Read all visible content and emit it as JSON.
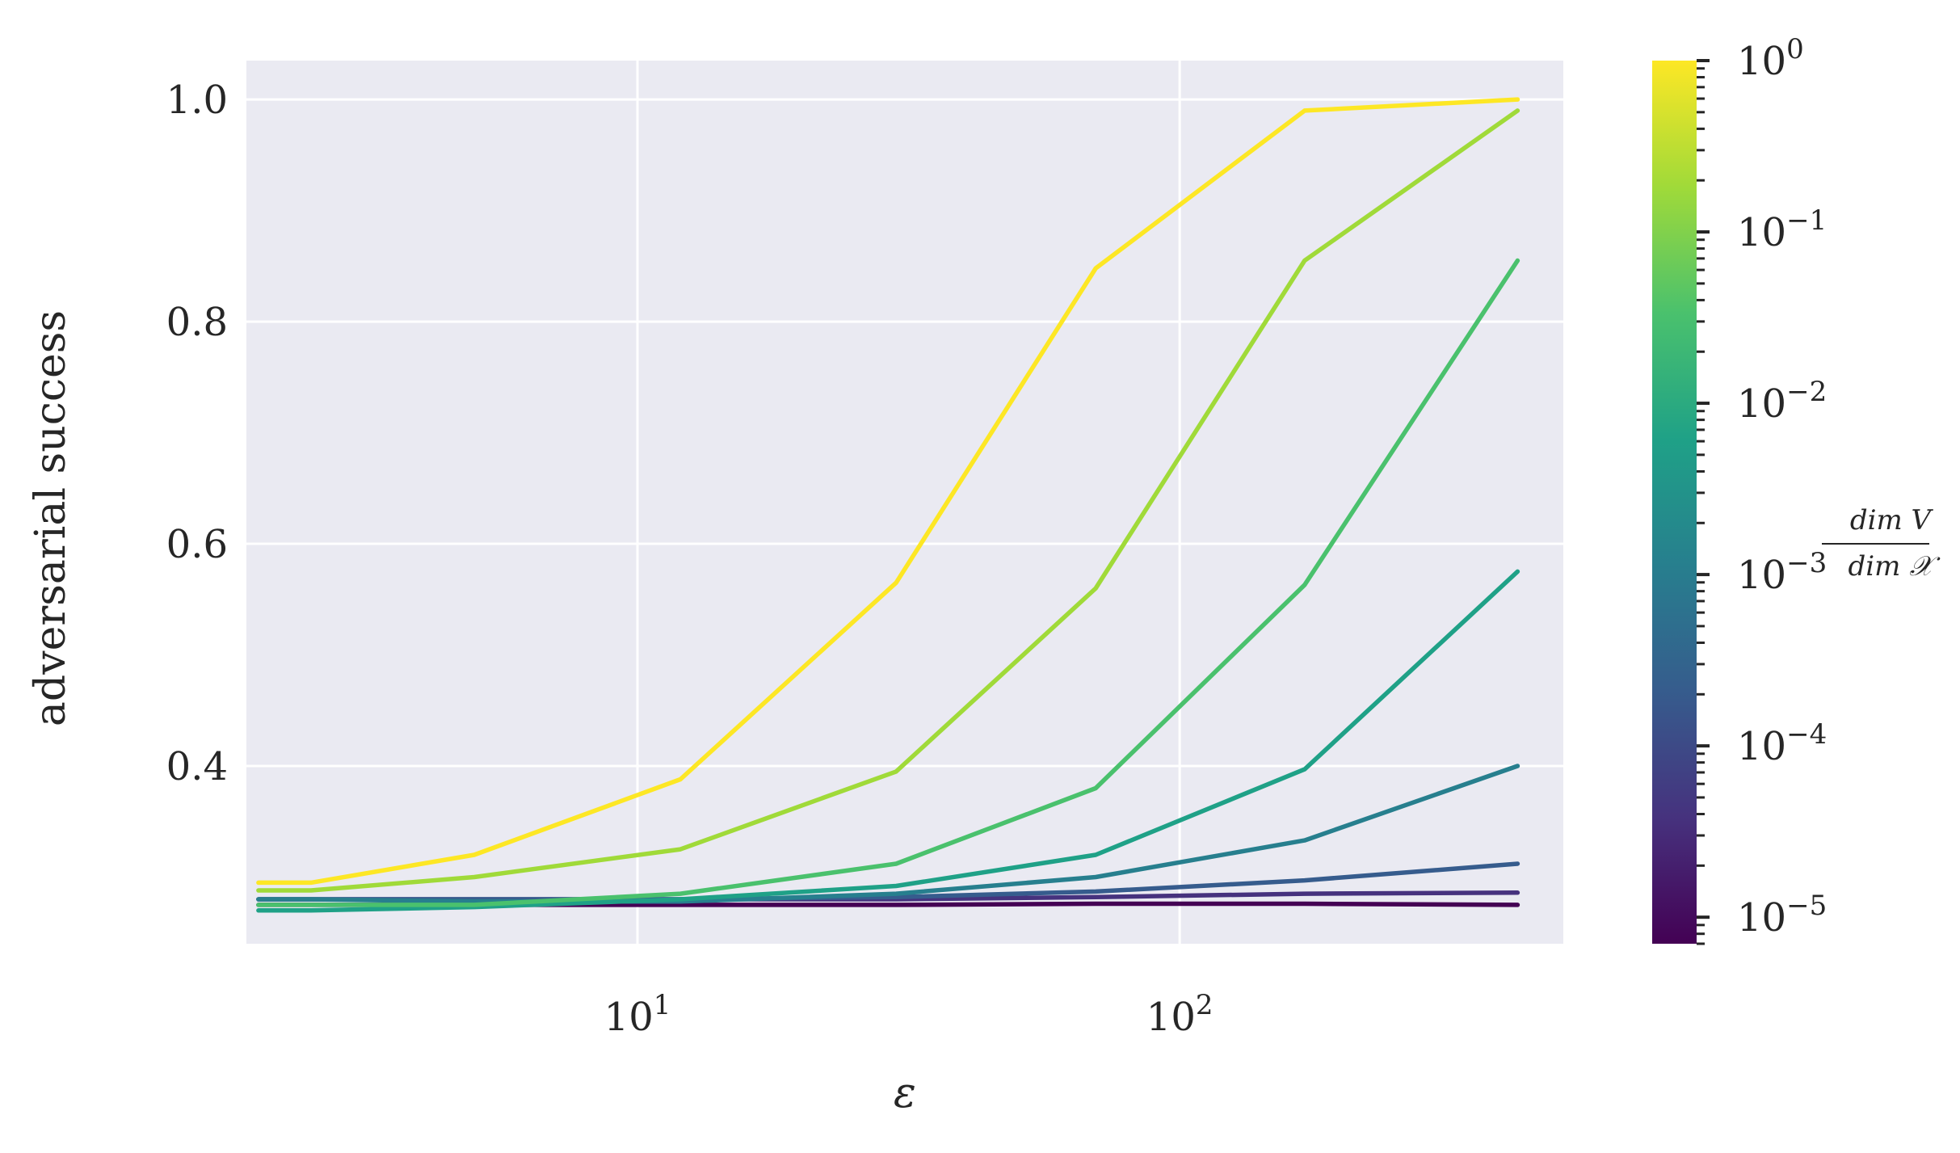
{
  "chart_data": {
    "type": "line",
    "xlabel": "ε",
    "ylabel": "adversarial success",
    "xscale": "log",
    "xlim": [
      1.9,
      510
    ],
    "ylim": [
      0.24,
      1.035
    ],
    "grid": true,
    "x_ticks": [
      {
        "value": 10,
        "base": "10",
        "exp": "1"
      },
      {
        "value": 100,
        "base": "10",
        "exp": "2"
      }
    ],
    "y_ticks": [
      {
        "value": 0.4,
        "label": "0.4"
      },
      {
        "value": 0.6,
        "label": "0.6"
      },
      {
        "value": 0.8,
        "label": "0.8"
      },
      {
        "value": 1.0,
        "label": "1.0"
      }
    ],
    "x": [
      2,
      2.5,
      5,
      12,
      30,
      70,
      170,
      420
    ],
    "series": [
      {
        "dim_ratio": 1.0,
        "color": "#fde725",
        "values": [
          0.295,
          0.295,
          0.32,
          0.388,
          0.565,
          0.848,
          0.99,
          1.0
        ]
      },
      {
        "dim_ratio": 0.1,
        "color": "#a0da39",
        "values": [
          0.288,
          0.288,
          0.3,
          0.325,
          0.395,
          0.56,
          0.855,
          0.99
        ]
      },
      {
        "dim_ratio": 0.03,
        "color": "#4ac16d",
        "values": [
          0.275,
          0.275,
          0.275,
          0.285,
          0.312,
          0.38,
          0.563,
          0.855
        ]
      },
      {
        "dim_ratio": 0.01,
        "color": "#1fa187",
        "values": [
          0.27,
          0.27,
          0.273,
          0.28,
          0.292,
          0.32,
          0.397,
          0.575
        ]
      },
      {
        "dim_ratio": 0.003,
        "color": "#277f8e",
        "values": [
          0.28,
          0.28,
          0.278,
          0.278,
          0.285,
          0.3,
          0.333,
          0.4
        ]
      },
      {
        "dim_ratio": 0.0005,
        "color": "#365c8d",
        "values": [
          0.28,
          0.28,
          0.28,
          0.28,
          0.282,
          0.287,
          0.297,
          0.312
        ]
      },
      {
        "dim_ratio": 5e-05,
        "color": "#46327e",
        "values": [
          0.28,
          0.28,
          0.28,
          0.28,
          0.28,
          0.282,
          0.285,
          0.286
        ]
      },
      {
        "dim_ratio": 1e-05,
        "color": "#440154",
        "values": [
          0.275,
          0.275,
          0.275,
          0.275,
          0.275,
          0.276,
          0.276,
          0.275
        ]
      }
    ],
    "colorbar": {
      "scale": "log",
      "range": [
        7e-06,
        1.0
      ],
      "colormap": [
        "#440154",
        "#46327e",
        "#365c8d",
        "#277f8e",
        "#1fa187",
        "#4ac16d",
        "#a0da39",
        "#fde725"
      ],
      "label_top": "dim V",
      "label_bottom": "dim 𝒳",
      "ticks": [
        {
          "value": 1.0,
          "base": "10",
          "exp": "0"
        },
        {
          "value": 0.1,
          "base": "10",
          "exp": "−1"
        },
        {
          "value": 0.01,
          "base": "10",
          "exp": "−2"
        },
        {
          "value": 0.001,
          "base": "10",
          "exp": "−3"
        },
        {
          "value": 0.0001,
          "base": "10",
          "exp": "−4"
        },
        {
          "value": 1e-05,
          "base": "10",
          "exp": "−5"
        }
      ]
    },
    "colors": {
      "plot_background": "#eaeaf2",
      "grid": "#ffffff",
      "text": "#262626"
    }
  }
}
